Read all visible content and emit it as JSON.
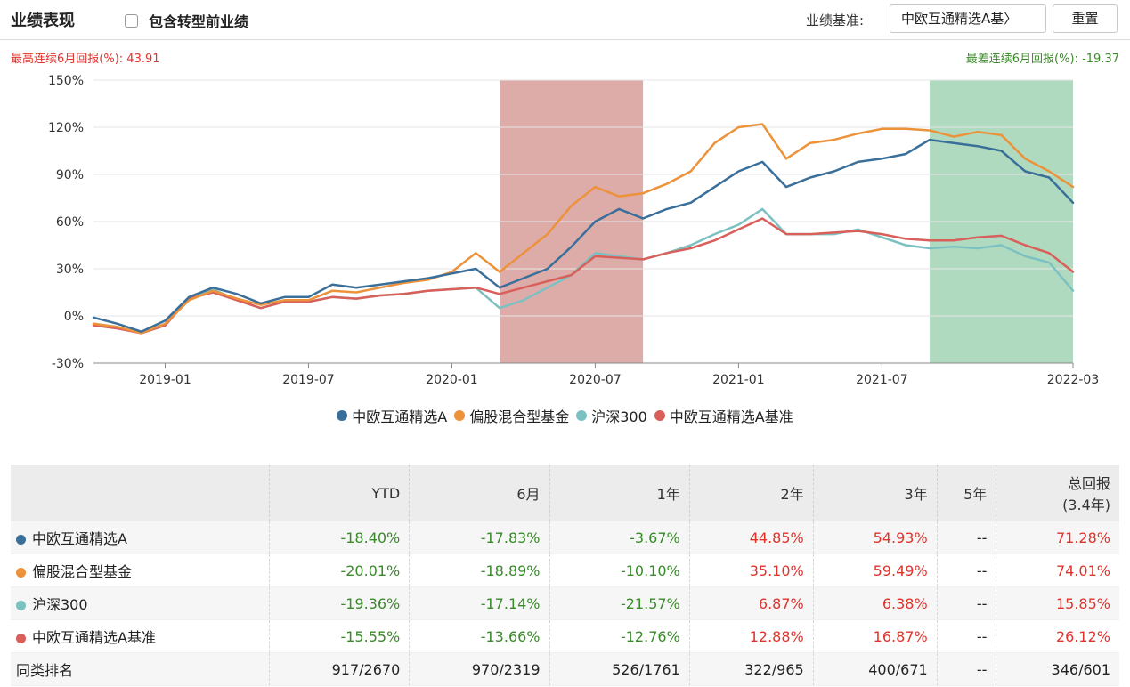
{
  "header": {
    "title": "业绩表现",
    "checkbox_label": "包含转型前业绩",
    "benchmark_label": "业绩基准:",
    "benchmark_value": "中欧互通精选A基〉",
    "reset_label": "重置"
  },
  "stats": {
    "best_label": "最高连续6月回报(%):",
    "best_value": "43.91",
    "worst_label": "最差连续6月回报(%):",
    "worst_value": "-19.37"
  },
  "colors": {
    "fund": "#3a6f9a",
    "category": "#ec923a",
    "csi300": "#7cc1c2",
    "benchmark": "#d95f5a",
    "best_band": "#c87872",
    "worst_band": "#80c49a"
  },
  "chart_data": {
    "type": "line",
    "x_unit": "month",
    "ylim": [
      -30,
      150
    ],
    "ytick_values": [
      -30,
      0,
      30,
      60,
      90,
      120,
      150
    ],
    "ytick_labels": [
      "-30%",
      "0%",
      "30%",
      "60%",
      "90%",
      "120%",
      "150%"
    ],
    "xticks": [
      {
        "label": "2019-01",
        "at": "2019-01"
      },
      {
        "label": "2019-07",
        "at": "2019-07"
      },
      {
        "label": "2020-01",
        "at": "2020-01"
      },
      {
        "label": "2020-07",
        "at": "2020-07"
      },
      {
        "label": "2021-01",
        "at": "2021-01"
      },
      {
        "label": "2021-07",
        "at": "2021-07"
      },
      {
        "label": "2022-03",
        "at": "2022-03"
      }
    ],
    "xlim": [
      "2018-10",
      "2022-03"
    ],
    "grid": true,
    "legend_position": "bottom",
    "bands": [
      {
        "name": "best",
        "from": "2020-03",
        "to": "2020-09"
      },
      {
        "name": "worst",
        "from": "2021-09",
        "to": "2022-03"
      }
    ],
    "x": [
      "2018-10",
      "2018-11",
      "2018-12",
      "2019-01",
      "2019-02",
      "2019-03",
      "2019-04",
      "2019-05",
      "2019-06",
      "2019-07",
      "2019-08",
      "2019-09",
      "2019-10",
      "2019-11",
      "2019-12",
      "2020-01",
      "2020-02",
      "2020-03",
      "2020-04",
      "2020-05",
      "2020-06",
      "2020-07",
      "2020-08",
      "2020-09",
      "2020-10",
      "2020-11",
      "2020-12",
      "2021-01",
      "2021-02",
      "2021-03",
      "2021-04",
      "2021-05",
      "2021-06",
      "2021-07",
      "2021-08",
      "2021-09",
      "2021-10",
      "2021-11",
      "2021-12",
      "2022-01",
      "2022-02",
      "2022-03"
    ],
    "series": [
      {
        "name": "中欧互通精选A",
        "color": "#3a6f9a",
        "values": [
          -1,
          -5,
          -10,
          -3,
          12,
          18,
          14,
          8,
          12,
          12,
          20,
          18,
          20,
          22,
          24,
          27,
          30,
          18,
          24,
          30,
          44,
          60,
          68,
          62,
          68,
          72,
          82,
          92,
          98,
          82,
          88,
          92,
          98,
          100,
          103,
          112,
          110,
          108,
          105,
          92,
          88,
          72
        ]
      },
      {
        "name": "偏股混合型基金",
        "color": "#ec923a",
        "values": [
          -5,
          -7,
          -11,
          -5,
          10,
          16,
          11,
          7,
          10,
          10,
          16,
          15,
          18,
          21,
          23,
          28,
          40,
          28,
          40,
          52,
          70,
          82,
          76,
          78,
          84,
          92,
          110,
          120,
          122,
          100,
          110,
          112,
          116,
          119,
          119,
          118,
          114,
          117,
          115,
          100,
          92,
          82
        ]
      },
      {
        "name": "沪深300",
        "color": "#7cc1c2",
        "values": [
          -5,
          -7,
          -11,
          -6,
          12,
          17,
          10,
          5,
          9,
          9,
          12,
          11,
          13,
          14,
          16,
          17,
          18,
          5,
          10,
          18,
          26,
          40,
          38,
          36,
          40,
          45,
          52,
          58,
          68,
          52,
          52,
          52,
          55,
          50,
          45,
          43,
          44,
          43,
          45,
          38,
          34,
          16
        ]
      },
      {
        "name": "中欧互通精选A基准",
        "color": "#d95f5a",
        "values": [
          -6,
          -8,
          -11,
          -6,
          11,
          15,
          10,
          5,
          9,
          9,
          12,
          11,
          13,
          14,
          16,
          17,
          18,
          14,
          18,
          22,
          26,
          38,
          37,
          36,
          40,
          43,
          48,
          55,
          62,
          52,
          52,
          53,
          54,
          52,
          49,
          48,
          48,
          50,
          51,
          45,
          40,
          28
        ]
      }
    ]
  },
  "table": {
    "headers": [
      "",
      "YTD",
      "6月",
      "1年",
      "2年",
      "3年",
      "5年",
      "总回报",
      "(3.4年)"
    ],
    "rows": [
      {
        "name": "中欧互通精选A",
        "color": "#3a6f9a",
        "values": [
          "-18.40%",
          "-17.83%",
          "-3.67%",
          "44.85%",
          "54.93%",
          "--",
          "71.28%"
        ]
      },
      {
        "name": "偏股混合型基金",
        "color": "#ec923a",
        "values": [
          "-20.01%",
          "-18.89%",
          "-10.10%",
          "35.10%",
          "59.49%",
          "--",
          "74.01%"
        ]
      },
      {
        "name": "沪深300",
        "color": "#7cc1c2",
        "values": [
          "-19.36%",
          "-17.14%",
          "-21.57%",
          "6.87%",
          "6.38%",
          "--",
          "15.85%"
        ]
      },
      {
        "name": "中欧互通精选A基准",
        "color": "#d95f5a",
        "values": [
          "-15.55%",
          "-13.66%",
          "-12.76%",
          "12.88%",
          "16.87%",
          "--",
          "26.12%"
        ]
      }
    ],
    "rank_row": {
      "name": "同类排名",
      "values": [
        "917/2670",
        "970/2319",
        "526/1761",
        "322/965",
        "400/671",
        "--",
        "346/601"
      ]
    }
  }
}
